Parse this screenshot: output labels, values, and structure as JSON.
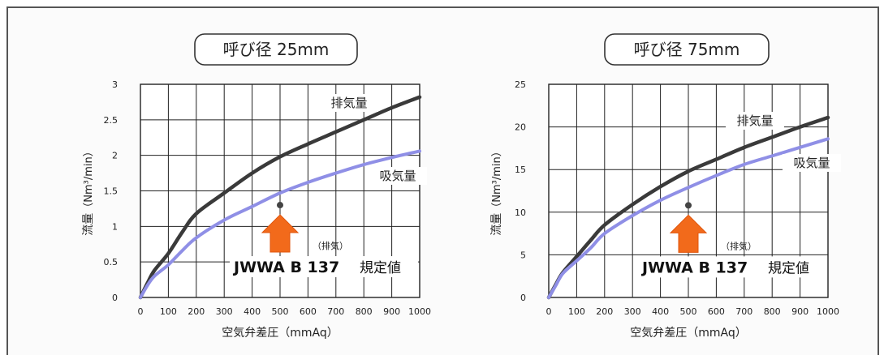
{
  "chart_data": [
    {
      "type": "line",
      "title": "呼び径 25mm",
      "xlabel": "空気弁差圧（mmAq）",
      "ylabel_main": "流量",
      "ylabel_unit": "（Nm³/min）",
      "xlim": [
        0,
        1000
      ],
      "ylim": [
        0,
        3
      ],
      "xticks": [
        "0",
        "100",
        "200",
        "300",
        "400",
        "500",
        "600",
        "700",
        "800",
        "900",
        "1000"
      ],
      "yticks": [
        "0",
        "0.5",
        "1",
        "1.5",
        "2",
        "2.5",
        "3"
      ],
      "grid": true,
      "series": [
        {
          "name": "排気量",
          "color": "#3a3a3a",
          "x": [
            0,
            25,
            50,
            100,
            150,
            200,
            300,
            400,
            500,
            600,
            700,
            800,
            900,
            1000
          ],
          "values": [
            0,
            0.2,
            0.38,
            0.62,
            0.92,
            1.18,
            1.47,
            1.75,
            1.98,
            2.16,
            2.33,
            2.5,
            2.67,
            2.82
          ]
        },
        {
          "name": "吸気量",
          "color": "#8f8fe6",
          "x": [
            0,
            25,
            50,
            100,
            150,
            200,
            300,
            400,
            500,
            600,
            700,
            800,
            900,
            1000
          ],
          "values": [
            0,
            0.17,
            0.3,
            0.46,
            0.66,
            0.84,
            1.09,
            1.28,
            1.47,
            1.62,
            1.75,
            1.87,
            1.97,
            2.06
          ]
        }
      ],
      "marker_point": {
        "x": 500,
        "y": 1.3
      },
      "annotation_note": "（排気）",
      "annotation_main": "JWWA B 137",
      "annotation_suffix": "規定値"
    },
    {
      "type": "line",
      "title": "呼び径 75mm",
      "xlabel": "空気弁差圧（mmAq）",
      "ylabel_main": "流量",
      "ylabel_unit": "（Nm³/min）",
      "xlim": [
        0,
        1000
      ],
      "ylim": [
        0,
        25
      ],
      "xticks": [
        "0",
        "100",
        "200",
        "300",
        "400",
        "500",
        "600",
        "700",
        "800",
        "900",
        "1000"
      ],
      "yticks": [
        "0",
        "5",
        "10",
        "15",
        "20",
        "25"
      ],
      "grid": true,
      "series": [
        {
          "name": "排気量",
          "color": "#3a3a3a",
          "x": [
            0,
            25,
            50,
            100,
            150,
            200,
            300,
            400,
            500,
            600,
            700,
            800,
            900,
            1000
          ],
          "values": [
            0,
            1.5,
            2.9,
            4.8,
            6.7,
            8.5,
            10.9,
            13.0,
            14.8,
            16.2,
            17.6,
            18.8,
            20.0,
            21.1
          ]
        },
        {
          "name": "吸気量",
          "color": "#8f8fe6",
          "x": [
            0,
            25,
            50,
            100,
            150,
            200,
            300,
            400,
            500,
            600,
            700,
            800,
            900,
            1000
          ],
          "values": [
            0,
            1.4,
            2.8,
            4.3,
            5.8,
            7.5,
            9.6,
            11.4,
            12.9,
            14.3,
            15.6,
            16.6,
            17.6,
            18.6
          ]
        }
      ],
      "marker_point": {
        "x": 500,
        "y": 10.8
      },
      "annotation_note": "（排気）",
      "annotation_main": "JWWA B 137",
      "annotation_suffix": "規定値"
    }
  ]
}
